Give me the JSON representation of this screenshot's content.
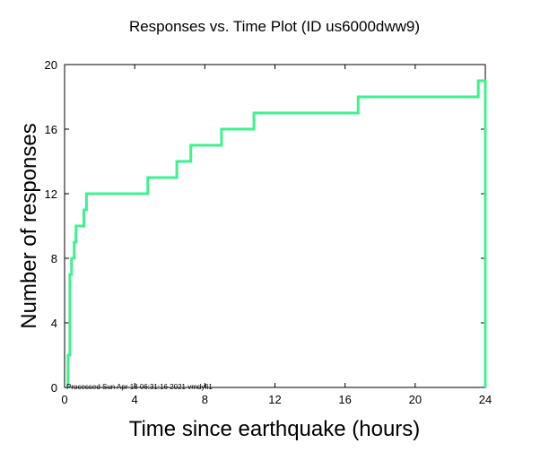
{
  "chart_data": {
    "type": "line",
    "title": "Responses vs. Time Plot (ID us6000dww9)",
    "xlabel": "Time since earthquake (hours)",
    "ylabel": "Number of responses",
    "xlim": [
      0,
      24
    ],
    "ylim": [
      0,
      20
    ],
    "xticks": [
      0,
      4,
      8,
      12,
      16,
      20,
      24
    ],
    "yticks": [
      0,
      4,
      8,
      12,
      16,
      20
    ],
    "grid": false,
    "line_color": "#3ef28e",
    "series": [
      {
        "step": true,
        "points": [
          [
            0.2,
            0
          ],
          [
            0.2,
            2
          ],
          [
            0.3,
            2
          ],
          [
            0.3,
            7
          ],
          [
            0.4,
            7
          ],
          [
            0.4,
            8
          ],
          [
            0.55,
            8
          ],
          [
            0.55,
            9
          ],
          [
            0.65,
            9
          ],
          [
            0.65,
            10
          ],
          [
            1.1,
            10
          ],
          [
            1.1,
            11
          ],
          [
            1.25,
            11
          ],
          [
            1.25,
            12
          ],
          [
            4.75,
            12
          ],
          [
            4.75,
            13
          ],
          [
            6.4,
            13
          ],
          [
            6.4,
            14
          ],
          [
            7.2,
            14
          ],
          [
            7.2,
            15
          ],
          [
            8.95,
            15
          ],
          [
            8.95,
            16
          ],
          [
            10.8,
            16
          ],
          [
            10.8,
            17
          ],
          [
            16.75,
            17
          ],
          [
            16.75,
            18
          ],
          [
            23.6,
            18
          ],
          [
            23.6,
            19
          ],
          [
            24.0,
            19
          ],
          [
            24.0,
            0
          ]
        ]
      }
    ],
    "annotation": "Processed Sun Apr 18 06:31:16 2021 vmdyfi1"
  }
}
